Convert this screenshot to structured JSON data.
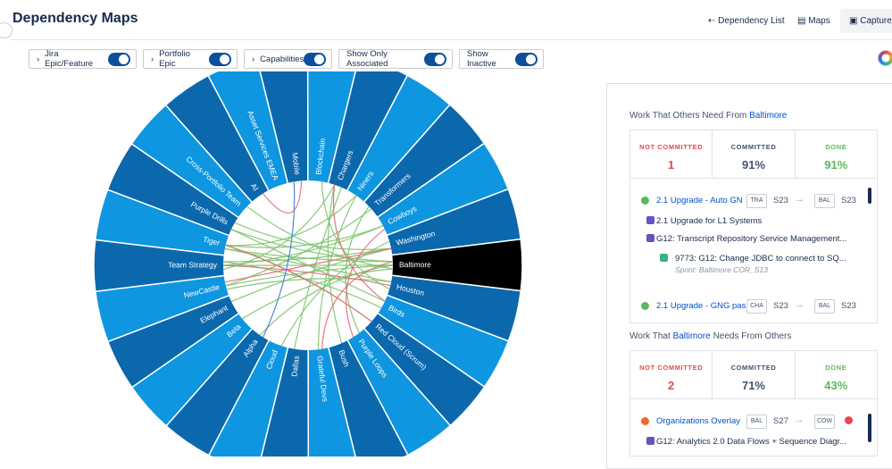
{
  "header": {
    "title": "Dependency Maps",
    "tabs": [
      "Dependency List",
      "Maps",
      "Capture"
    ]
  },
  "filters": [
    "Jira Epic/Feature",
    "Portfolio Epic",
    "Capabilities",
    "Show Only Associated",
    "Show Inactive"
  ],
  "map": {
    "nodes": [
      "Mobile",
      "Blockchain",
      "Chargers",
      "Niners",
      "Transformers",
      "Cowboys",
      "Washington",
      "Baltimore",
      "Houston",
      "Birds",
      "Red Cloud (Scrum)",
      "Purple Loops",
      "Bush",
      "Grateful Devs",
      "Dallas",
      "Cloud",
      "Alpha",
      "Beta",
      "Elephant",
      "NewCastle",
      "Team Strategy",
      "Tiger",
      "Purple Drills",
      "Cross-Portfolio Team",
      "AI",
      "Asset Services EMEA"
    ]
  },
  "panel": {
    "sections": [
      {
        "heading": {
          "prefix": "Work That Others Need From",
          "team": "Baltimore"
        },
        "stats": [
          {
            "label": "NOT COMMITTED",
            "value": "1"
          },
          {
            "label": "COMMITTED",
            "value": "91%"
          },
          {
            "label": "DONE",
            "value": "91%"
          }
        ],
        "items": [
          {
            "title": "2.1 Upgrade - Auto GN",
            "from": "TRA",
            "from_sprint": "S23",
            "to": "BAL",
            "to_sprint": "S23",
            "children": [
              "2.1 Upgrade for L1 Systems",
              "G12: Transcript Repository Service Management..."
            ],
            "story": {
              "title": "9773: G12: Change JDBC to connect to SQ...",
              "sprint": "Sprint: Baltimore COR_S13"
            }
          },
          {
            "title": "2.1 Upgrade - GNG pas",
            "from": "CHA",
            "from_sprint": "S23",
            "to": "BAL",
            "to_sprint": "S23"
          }
        ]
      },
      {
        "heading": {
          "prefix": "Work That",
          "team": "Baltimore",
          "suffix": "Needs From Others"
        },
        "stats": [
          {
            "label": "NOT COMMITTED",
            "value": "2"
          },
          {
            "label": "COMMITTED",
            "value": "71%"
          },
          {
            "label": "DONE",
            "value": "43%"
          }
        ],
        "items": [
          {
            "title": "Organizations Overlay",
            "from": "BAL",
            "from_sprint": "S27",
            "to": "COW",
            "children": [
              "G12: Analytics 2.0 Data Flows + Sequence Diagr..."
            ]
          }
        ]
      }
    ]
  }
}
